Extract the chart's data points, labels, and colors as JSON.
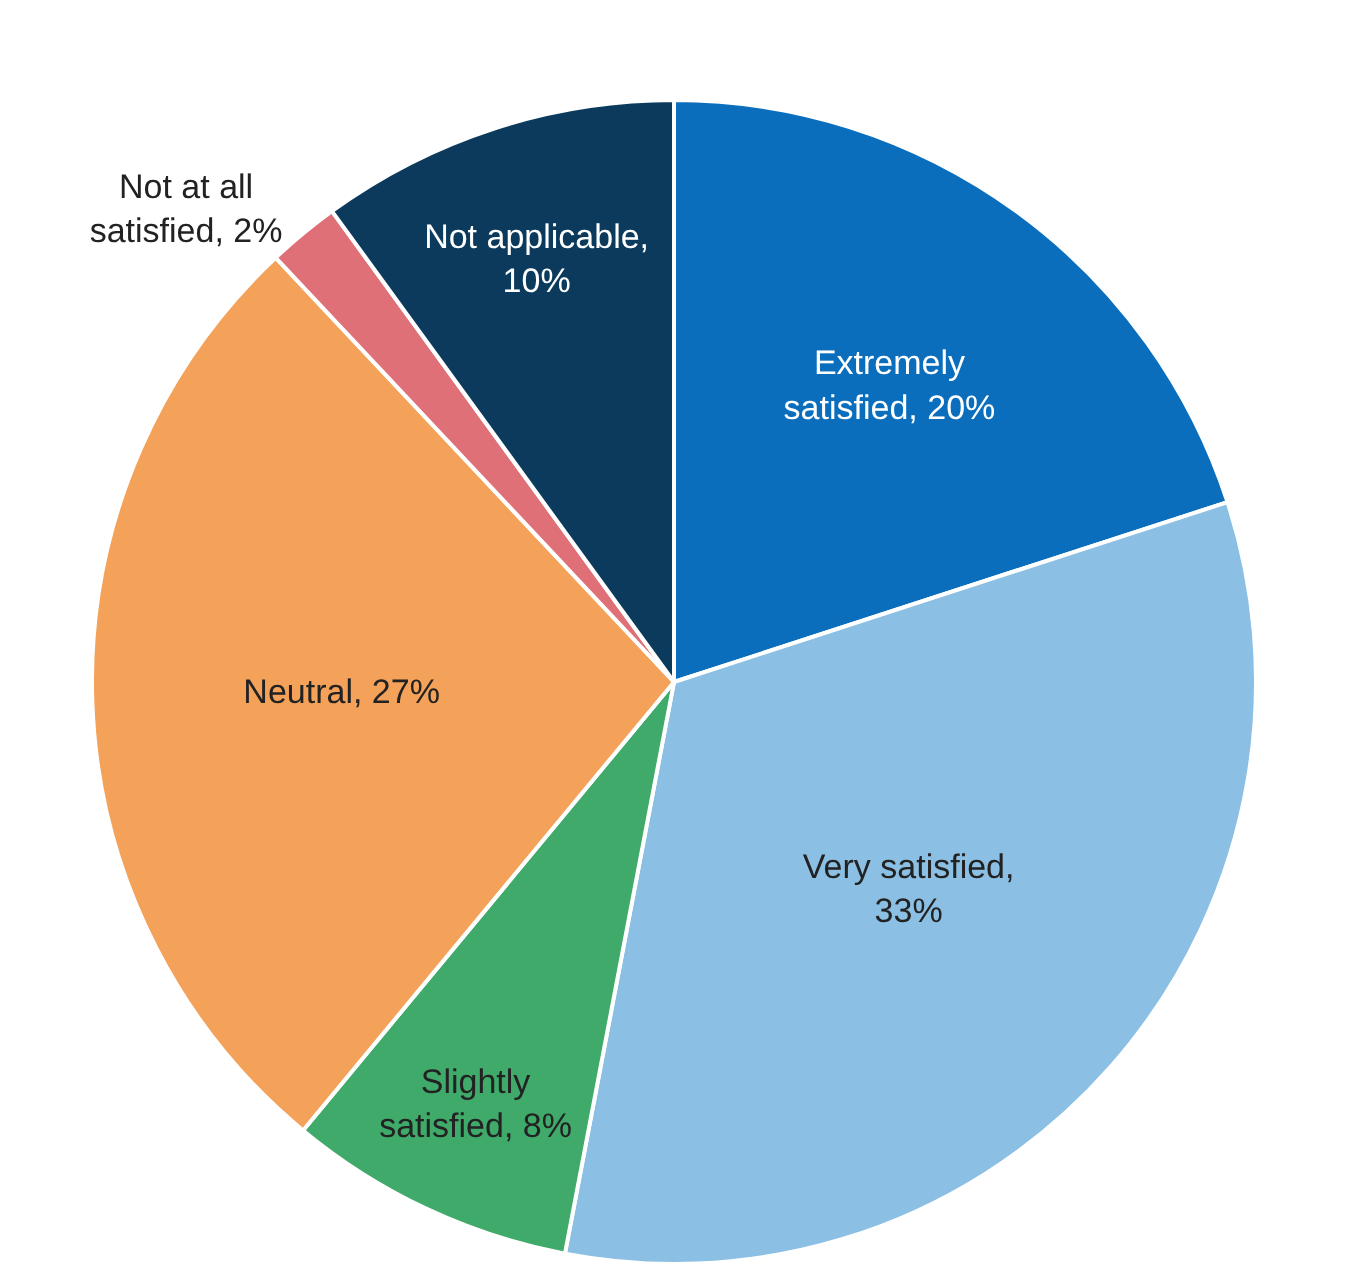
{
  "chart_data": {
    "type": "pie",
    "categories": [
      "Extremely satisfied, 20%",
      "Very satisfied, 33%",
      "Slightly satisfied, 8%",
      "Neutral, 27%",
      "Not at all satisfied, 2%",
      "Not applicable, 10%"
    ],
    "values": [
      20,
      33,
      8,
      27,
      2,
      10
    ],
    "colors": [
      "#0a6ebd",
      "#8bbfe3",
      "#3faa6a",
      "#f4a259",
      "#e07078",
      "#0b3a5c"
    ],
    "legend": false
  }
}
